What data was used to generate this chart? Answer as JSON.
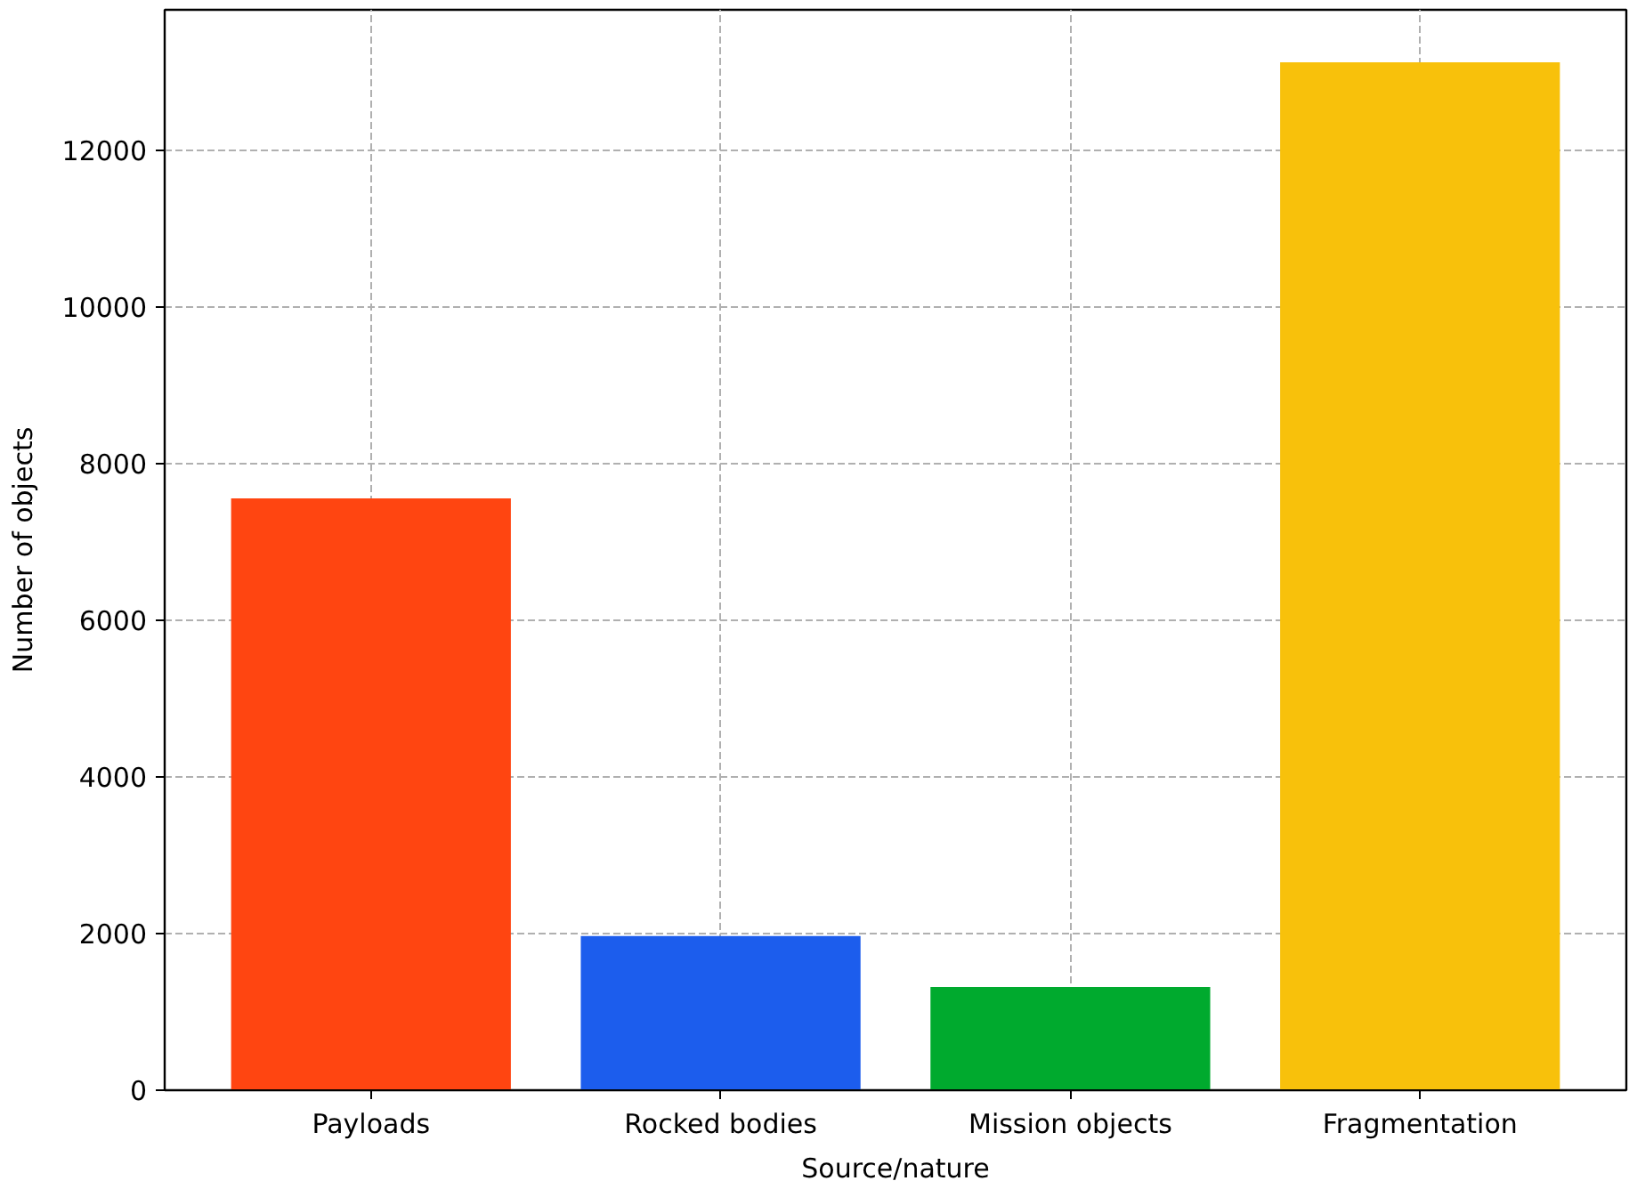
{
  "chart_data": {
    "type": "bar",
    "xlabel": "Source/nature",
    "ylabel": "Number of objects",
    "categories": [
      "Payloads",
      "Rocked bodies",
      "Mission objects",
      "Fragmentation"
    ],
    "values": [
      7560,
      1970,
      1320,
      13130
    ],
    "colors": [
      "#ff4511",
      "#1c5ded",
      "#00aa2e",
      "#f8c10b"
    ],
    "ylim": [
      0,
      13800
    ],
    "yticks": [
      0,
      2000,
      4000,
      6000,
      8000,
      10000,
      12000
    ],
    "grid": true
  }
}
